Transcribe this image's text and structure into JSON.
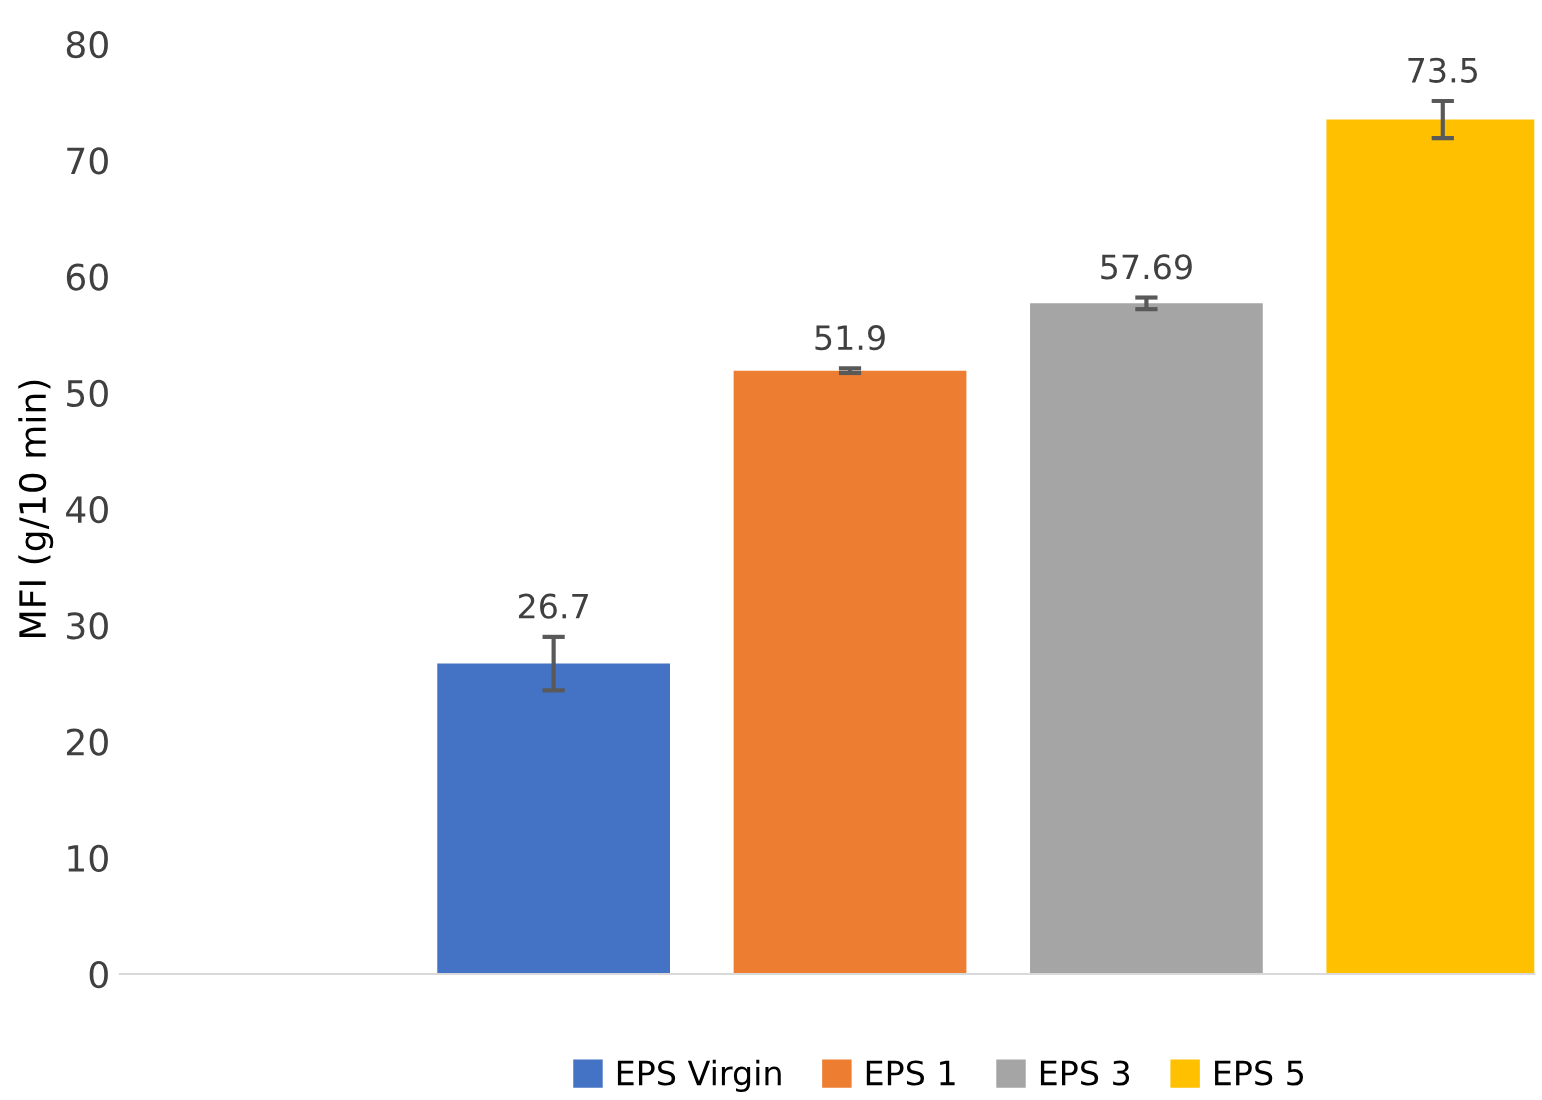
{
  "chart_data": {
    "type": "bar",
    "ylabel": "MFI (g/10 min)",
    "categories": [
      null
    ],
    "series": [
      {
        "name": "EPS Virgin",
        "color": "#4472c4",
        "values": [
          26.7
        ],
        "errors": [
          2.3
        ]
      },
      {
        "name": "EPS 1",
        "color": "#ed7d31",
        "values": [
          51.9
        ],
        "errors": [
          0.2
        ]
      },
      {
        "name": "EPS 3",
        "color": "#a5a5a5",
        "values": [
          57.69
        ],
        "errors": [
          0.5
        ]
      },
      {
        "name": "EPS 5",
        "color": "#ffc000",
        "values": [
          73.5
        ],
        "errors": [
          1.6
        ]
      }
    ],
    "ylim": [
      0,
      80
    ],
    "yticks": [
      0,
      10,
      20,
      30,
      40,
      50,
      60,
      70,
      80
    ],
    "grid": false,
    "legend": "bottom",
    "data_labels": true
  }
}
